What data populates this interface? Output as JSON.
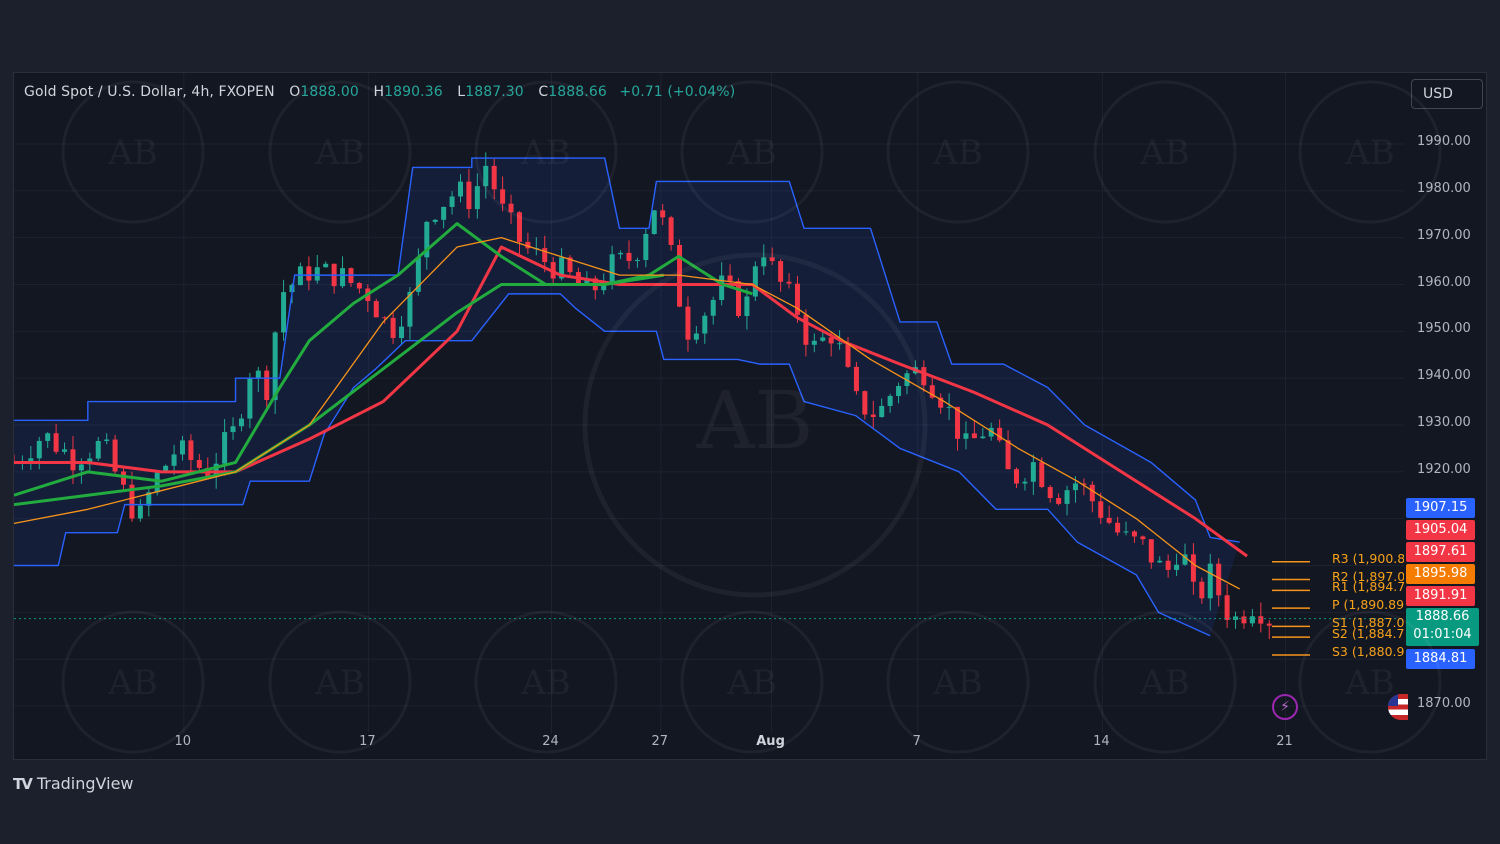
{
  "header": {
    "symbol": "Gold Spot / U.S. Dollar, 4h, FXOPEN",
    "open_key": "O",
    "open": "1888.00",
    "high_key": "H",
    "high": "1890.36",
    "low_key": "L",
    "low": "1887.30",
    "close_key": "C",
    "close": "1888.66",
    "change": "+0.71 (+0.04%)"
  },
  "currency": "USD",
  "branding": {
    "logo_mark": "TV",
    "name": "TradingView",
    "watermark_text": "AB"
  },
  "price_tags": [
    {
      "value": "1907.15",
      "color": "#2962ff"
    },
    {
      "value": "1905.04",
      "color": "#f23645"
    },
    {
      "value": "1897.61",
      "color": "#f23645"
    },
    {
      "value": "1895.98",
      "color": "#f57c00"
    },
    {
      "value": "1891.91",
      "color": "#f23645"
    }
  ],
  "last_price": {
    "value": "1888.66",
    "countdown": "01:01:04",
    "color": "#089981"
  },
  "low_band_tag": {
    "value": "1884.81",
    "color": "#2962ff"
  },
  "pivot_labels": [
    {
      "text": "R3 (1,900.8",
      "value": 1900.8
    },
    {
      "text": "R2 (1,897.0",
      "value": 1897.0
    },
    {
      "text": "R1 (1,894.7",
      "value": 1894.7
    },
    {
      "text": "P (1,890.89",
      "value": 1890.89
    },
    {
      "text": "S1 (1,887.0",
      "value": 1887.0
    },
    {
      "text": "S2 (1,884.7",
      "value": 1884.7
    },
    {
      "text": "S3 (1,880.9",
      "value": 1880.9
    }
  ],
  "chart_data": {
    "type": "candlestick",
    "ylim": [
      1866,
      1995
    ],
    "yticks": [
      "1990.00",
      "1980.00",
      "1970.00",
      "1960.00",
      "1950.00",
      "1940.00",
      "1930.00",
      "1920.00",
      "1870.00"
    ],
    "ytick_values": [
      1990,
      1980,
      1970,
      1960,
      1950,
      1940,
      1930,
      1920,
      1870
    ],
    "xticks": [
      {
        "label": "10",
        "t": 0.115,
        "bold": false
      },
      {
        "label": "17",
        "t": 0.24,
        "bold": false
      },
      {
        "label": "24",
        "t": 0.364,
        "bold": false
      },
      {
        "label": "27",
        "t": 0.438,
        "bold": false
      },
      {
        "label": "Aug",
        "t": 0.513,
        "bold": true
      },
      {
        "label": "7",
        "t": 0.612,
        "bold": false
      },
      {
        "label": "14",
        "t": 0.737,
        "bold": false
      },
      {
        "label": "21",
        "t": 0.861,
        "bold": false
      }
    ],
    "close_path": [
      [
        0,
        1922
      ],
      [
        0.02,
        1928
      ],
      [
        0.04,
        1923
      ],
      [
        0.06,
        1926
      ],
      [
        0.075,
        1915
      ],
      [
        0.085,
        1910
      ],
      [
        0.095,
        1918
      ],
      [
        0.11,
        1925
      ],
      [
        0.13,
        1920
      ],
      [
        0.15,
        1929
      ],
      [
        0.16,
        1942
      ],
      [
        0.172,
        1938
      ],
      [
        0.18,
        1958
      ],
      [
        0.2,
        1963
      ],
      [
        0.22,
        1962
      ],
      [
        0.24,
        1958
      ],
      [
        0.255,
        1950
      ],
      [
        0.27,
        1958
      ],
      [
        0.28,
        1975
      ],
      [
        0.3,
        1980
      ],
      [
        0.31,
        1978
      ],
      [
        0.32,
        1986
      ],
      [
        0.33,
        1976
      ],
      [
        0.345,
        1968
      ],
      [
        0.36,
        1965
      ],
      [
        0.375,
        1962
      ],
      [
        0.39,
        1958
      ],
      [
        0.405,
        1964
      ],
      [
        0.42,
        1966
      ],
      [
        0.435,
        1978
      ],
      [
        0.445,
        1966
      ],
      [
        0.455,
        1950
      ],
      [
        0.47,
        1955
      ],
      [
        0.48,
        1960
      ],
      [
        0.495,
        1954
      ],
      [
        0.505,
        1970
      ],
      [
        0.515,
        1962
      ],
      [
        0.53,
        1955
      ],
      [
        0.54,
        1946
      ],
      [
        0.555,
        1950
      ],
      [
        0.57,
        1935
      ],
      [
        0.585,
        1932
      ],
      [
        0.6,
        1940
      ],
      [
        0.615,
        1942
      ],
      [
        0.63,
        1935
      ],
      [
        0.645,
        1925
      ],
      [
        0.66,
        1930
      ],
      [
        0.675,
        1918
      ],
      [
        0.69,
        1922
      ],
      [
        0.705,
        1915
      ],
      [
        0.72,
        1918
      ],
      [
        0.735,
        1912
      ],
      [
        0.75,
        1906
      ],
      [
        0.765,
        1904
      ],
      [
        0.78,
        1898
      ],
      [
        0.79,
        1905
      ],
      [
        0.8,
        1892
      ],
      [
        0.81,
        1898
      ],
      [
        0.825,
        1888
      ],
      [
        0.84,
        1892
      ],
      [
        0.85,
        1888.66
      ]
    ],
    "series": [
      {
        "color": "#2962ff",
        "role": "band-upper",
        "values": [
          [
            0,
            1931
          ],
          [
            0.05,
            1931
          ],
          [
            0.05,
            1935
          ],
          [
            0.11,
            1935
          ],
          [
            0.11,
            1935
          ],
          [
            0.15,
            1935
          ],
          [
            0.15,
            1940
          ],
          [
            0.18,
            1940
          ],
          [
            0.19,
            1962
          ],
          [
            0.23,
            1962
          ],
          [
            0.26,
            1962
          ],
          [
            0.27,
            1985
          ],
          [
            0.31,
            1985
          ],
          [
            0.31,
            1987
          ],
          [
            0.4,
            1987
          ],
          [
            0.41,
            1972
          ],
          [
            0.43,
            1972
          ],
          [
            0.435,
            1982
          ],
          [
            0.525,
            1982
          ],
          [
            0.535,
            1972
          ],
          [
            0.58,
            1972
          ],
          [
            0.6,
            1952
          ],
          [
            0.625,
            1952
          ],
          [
            0.635,
            1943
          ],
          [
            0.67,
            1943
          ],
          [
            0.7,
            1938
          ],
          [
            0.725,
            1930
          ],
          [
            0.77,
            1922
          ],
          [
            0.8,
            1914
          ],
          [
            0.81,
            1906
          ],
          [
            0.83,
            1905
          ]
        ]
      },
      {
        "color": "#2962ff",
        "role": "band-lower",
        "values": [
          [
            0,
            1900
          ],
          [
            0.03,
            1900
          ],
          [
            0.035,
            1907
          ],
          [
            0.07,
            1907
          ],
          [
            0.075,
            1913
          ],
          [
            0.155,
            1913
          ],
          [
            0.16,
            1918
          ],
          [
            0.2,
            1918
          ],
          [
            0.21,
            1928
          ],
          [
            0.23,
            1938
          ],
          [
            0.245,
            1942
          ],
          [
            0.265,
            1948
          ],
          [
            0.31,
            1948
          ],
          [
            0.335,
            1958
          ],
          [
            0.37,
            1958
          ],
          [
            0.38,
            1955
          ],
          [
            0.4,
            1950
          ],
          [
            0.435,
            1950
          ],
          [
            0.44,
            1944
          ],
          [
            0.49,
            1944
          ],
          [
            0.505,
            1943
          ],
          [
            0.525,
            1943
          ],
          [
            0.535,
            1935
          ],
          [
            0.57,
            1932
          ],
          [
            0.6,
            1925
          ],
          [
            0.64,
            1920
          ],
          [
            0.665,
            1912
          ],
          [
            0.7,
            1912
          ],
          [
            0.72,
            1905
          ],
          [
            0.76,
            1898
          ],
          [
            0.775,
            1890
          ],
          [
            0.81,
            1885
          ]
        ]
      },
      {
        "color": "#f23645",
        "role": "ema-slow",
        "values": [
          [
            0,
            1922
          ],
          [
            0.05,
            1922
          ],
          [
            0.1,
            1920
          ],
          [
            0.15,
            1920
          ],
          [
            0.2,
            1927
          ],
          [
            0.25,
            1935
          ],
          [
            0.3,
            1950
          ],
          [
            0.33,
            1968
          ],
          [
            0.37,
            1962
          ],
          [
            0.41,
            1960
          ],
          [
            0.45,
            1960
          ],
          [
            0.5,
            1960
          ],
          [
            0.53,
            1953
          ],
          [
            0.56,
            1948
          ],
          [
            0.6,
            1943
          ],
          [
            0.65,
            1937
          ],
          [
            0.7,
            1930
          ],
          [
            0.75,
            1920
          ],
          [
            0.8,
            1910
          ],
          [
            0.835,
            1902
          ]
        ]
      },
      {
        "color": "#22ab3e",
        "role": "ema-fast",
        "values": [
          [
            0,
            1915
          ],
          [
            0.05,
            1920
          ],
          [
            0.1,
            1918
          ],
          [
            0.15,
            1922
          ],
          [
            0.18,
            1938
          ],
          [
            0.2,
            1948
          ],
          [
            0.23,
            1956
          ],
          [
            0.26,
            1962
          ],
          [
            0.3,
            1973
          ],
          [
            0.33,
            1966
          ],
          [
            0.36,
            1960
          ],
          [
            0.4,
            1960
          ],
          [
            0.43,
            1962
          ],
          [
            0.45,
            1966
          ],
          [
            0.48,
            1960
          ],
          [
            0.5,
            1958
          ]
        ]
      },
      {
        "color": "#22ab3e",
        "role": "ema-slow-green",
        "values": [
          [
            0,
            1913
          ],
          [
            0.05,
            1915
          ],
          [
            0.1,
            1917
          ],
          [
            0.15,
            1920
          ],
          [
            0.2,
            1930
          ],
          [
            0.25,
            1942
          ],
          [
            0.3,
            1954
          ],
          [
            0.33,
            1960
          ],
          [
            0.36,
            1960
          ],
          [
            0.4,
            1960
          ],
          [
            0.44,
            1962
          ]
        ]
      },
      {
        "color": "#f7931a",
        "role": "sma",
        "values": [
          [
            0,
            1909
          ],
          [
            0.05,
            1912
          ],
          [
            0.1,
            1916
          ],
          [
            0.15,
            1920
          ],
          [
            0.2,
            1930
          ],
          [
            0.25,
            1952
          ],
          [
            0.3,
            1968
          ],
          [
            0.33,
            1970
          ],
          [
            0.37,
            1966
          ],
          [
            0.41,
            1962
          ],
          [
            0.45,
            1962
          ],
          [
            0.5,
            1960
          ],
          [
            0.53,
            1955
          ],
          [
            0.58,
            1944
          ],
          [
            0.63,
            1935
          ],
          [
            0.68,
            1925
          ],
          [
            0.72,
            1918
          ],
          [
            0.76,
            1910
          ],
          [
            0.8,
            1900
          ],
          [
            0.83,
            1895
          ]
        ]
      }
    ]
  }
}
